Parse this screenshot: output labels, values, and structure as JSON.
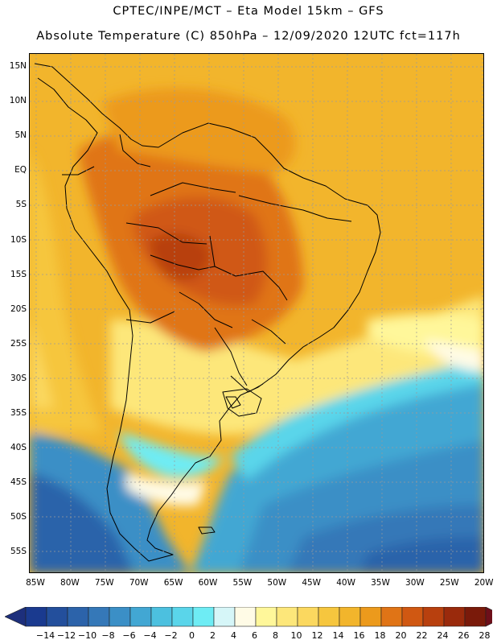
{
  "header": {
    "title_line1": "CPTEC/INPE/MCT –  Eta Model 15km – GFS",
    "title_line2": "Absolute Temperature (C) 850hPa – 12/09/2020 12UTC fct=117h"
  },
  "map": {
    "variable": "Absolute Temperature (C) 850hPa",
    "lat_labels": [
      "15N",
      "10N",
      "5N",
      "EQ",
      "5S",
      "10S",
      "15S",
      "20S",
      "25S",
      "30S",
      "35S",
      "40S",
      "45S",
      "50S",
      "55S"
    ],
    "lon_labels": [
      "85W",
      "80W",
      "75W",
      "70W",
      "65W",
      "60W",
      "55W",
      "50W",
      "45W",
      "40W",
      "35W",
      "30W",
      "25W",
      "20W"
    ]
  },
  "colorbar": {
    "labels": [
      "-14",
      "-12",
      "-10",
      "-8",
      "-6",
      "-4",
      "-2",
      "0",
      "2",
      "4",
      "6",
      "8",
      "10",
      "12",
      "14",
      "16",
      "18",
      "20",
      "22",
      "24",
      "26",
      "28"
    ],
    "colors": [
      "#1a3a8f",
      "#234f9c",
      "#2c63aa",
      "#3578b8",
      "#3b8fc6",
      "#42a7d3",
      "#4cc0df",
      "#5ad5ea",
      "#6eecf4",
      "#d6f6f8",
      "#fffbe6",
      "#fff79a",
      "#fde77a",
      "#fbd85f",
      "#f6c63e",
      "#f2b52c",
      "#ec9a1c",
      "#e07416",
      "#d05812",
      "#b8400e",
      "#9a2a0c",
      "#7a1a0a"
    ],
    "under_color": "#1d2f7c",
    "over_color": "#6e0f1a"
  }
}
